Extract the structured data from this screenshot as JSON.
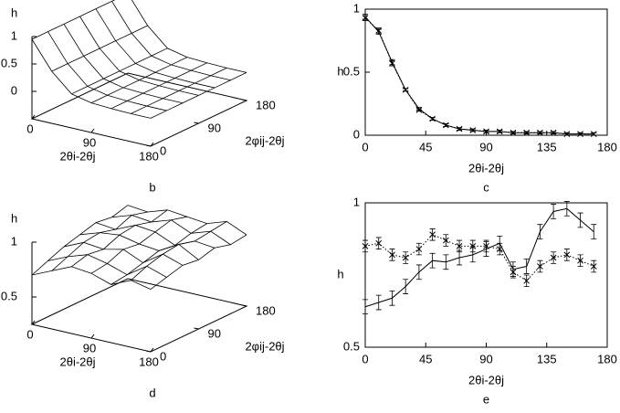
{
  "chart_data": [
    {
      "type": "surface3d",
      "panel": "b",
      "zlabel": "h",
      "xlabel": "2θi-2θj",
      "ylabel": "2φij-2θj",
      "xlim": [
        0,
        180
      ],
      "ylim": [
        0,
        180
      ],
      "zlim": [
        0,
        1
      ],
      "xticks": [
        0,
        90,
        180
      ],
      "yticks": [
        0,
        90,
        180
      ],
      "zticks": [
        0,
        0.5,
        1
      ],
      "x": [
        0,
        30,
        60,
        90,
        120,
        150,
        180
      ],
      "y": [
        0,
        30,
        60,
        90,
        120,
        150,
        180
      ],
      "z": [
        [
          0.95,
          0.45,
          0.12,
          0.04,
          0.02,
          0.01,
          0.01
        ],
        [
          0.95,
          0.45,
          0.12,
          0.04,
          0.02,
          0.01,
          0.01
        ],
        [
          0.95,
          0.45,
          0.12,
          0.04,
          0.02,
          0.01,
          0.01
        ],
        [
          0.95,
          0.45,
          0.12,
          0.04,
          0.02,
          0.01,
          0.01
        ],
        [
          0.95,
          0.45,
          0.12,
          0.04,
          0.02,
          0.01,
          0.01
        ],
        [
          0.95,
          0.45,
          0.12,
          0.04,
          0.02,
          0.01,
          0.01
        ],
        [
          0.95,
          0.45,
          0.12,
          0.04,
          0.02,
          0.01,
          0.01
        ]
      ]
    },
    {
      "type": "line",
      "panel": "c",
      "ylabel": "h",
      "xlabel": "2θi-2θj",
      "xlim": [
        0,
        180
      ],
      "ylim": [
        0,
        1
      ],
      "xticks": [
        0,
        45,
        90,
        135,
        180
      ],
      "yticks": [
        0,
        0.5,
        1
      ],
      "x": [
        0,
        10,
        20,
        30,
        40,
        50,
        60,
        70,
        80,
        90,
        100,
        110,
        120,
        130,
        140,
        150,
        160,
        170
      ],
      "series": [
        {
          "color": "#000000",
          "line_style": "solid",
          "marker": "none",
          "values": [
            0.94,
            0.82,
            0.58,
            0.36,
            0.21,
            0.13,
            0.08,
            0.05,
            0.04,
            0.03,
            0.03,
            0.02,
            0.02,
            0.02,
            0.02,
            0.01,
            0.01,
            0.01
          ],
          "errors": [
            0.02,
            0.02,
            0.02,
            0.01,
            0.01,
            0.01,
            0.01,
            0.01,
            0.01,
            0.01,
            0.01,
            0.01,
            0.01,
            0.01,
            0.01,
            0.01,
            0.01,
            0.01
          ]
        },
        {
          "color": "#000000",
          "line_style": "dotted",
          "marker": "x",
          "values": [
            0.93,
            0.83,
            0.57,
            0.36,
            0.2,
            0.13,
            0.08,
            0.05,
            0.04,
            0.03,
            0.03,
            0.02,
            0.02,
            0.02,
            0.02,
            0.01,
            0.01,
            0.01
          ],
          "errors": [
            0.02,
            0.02,
            0.02,
            0.01,
            0.01,
            0.01,
            0.01,
            0.01,
            0.01,
            0.01,
            0.01,
            0.01,
            0.01,
            0.01,
            0.01,
            0.01,
            0.01,
            0.01
          ]
        }
      ]
    },
    {
      "type": "surface3d",
      "panel": "d",
      "zlabel": "h",
      "xlabel": "2θi-2θj",
      "ylabel": "2φij-2θj",
      "xlim": [
        0,
        180
      ],
      "ylim": [
        0,
        180
      ],
      "zlim": [
        0.5,
        1
      ],
      "xticks": [
        0,
        90,
        180
      ],
      "yticks": [
        0,
        90,
        180
      ],
      "zticks": [
        0.5,
        1
      ],
      "x": [
        0,
        30,
        60,
        90,
        120,
        150,
        180
      ],
      "y": [
        0,
        30,
        60,
        90,
        120,
        150,
        180
      ],
      "z": [
        [
          0.7,
          0.78,
          0.86,
          0.84,
          0.78,
          0.86,
          0.82
        ],
        [
          0.76,
          0.84,
          0.9,
          0.86,
          0.8,
          0.92,
          0.86
        ],
        [
          0.82,
          0.9,
          0.88,
          0.92,
          0.84,
          0.96,
          0.9
        ],
        [
          0.86,
          0.92,
          0.94,
          0.9,
          0.88,
          0.98,
          0.88
        ],
        [
          0.9,
          0.88,
          0.96,
          0.94,
          0.86,
          0.94,
          0.92
        ],
        [
          0.88,
          0.94,
          0.92,
          0.98,
          0.9,
          0.96,
          0.88
        ],
        [
          0.92,
          0.9,
          0.96,
          0.94,
          0.92,
          0.98,
          0.9
        ]
      ]
    },
    {
      "type": "line",
      "panel": "e",
      "ylabel": "h",
      "xlabel": "2θi-2θj",
      "xlim": [
        0,
        180
      ],
      "ylim": [
        0.5,
        1
      ],
      "xticks": [
        0,
        45,
        90,
        135,
        180
      ],
      "yticks": [
        0.5,
        1
      ],
      "x": [
        0,
        10,
        20,
        30,
        40,
        50,
        60,
        70,
        80,
        90,
        100,
        110,
        120,
        130,
        140,
        150,
        160,
        170
      ],
      "series": [
        {
          "color": "#000000",
          "line_style": "solid",
          "marker": "none",
          "values": [
            0.64,
            0.655,
            0.67,
            0.71,
            0.76,
            0.8,
            0.795,
            0.81,
            0.82,
            0.84,
            0.86,
            0.77,
            0.78,
            0.9,
            0.97,
            0.98,
            0.94,
            0.9
          ],
          "errors": [
            0.025,
            0.025,
            0.025,
            0.025,
            0.025,
            0.025,
            0.025,
            0.025,
            0.025,
            0.025,
            0.025,
            0.025,
            0.025,
            0.025,
            0.025,
            0.025,
            0.025,
            0.025
          ]
        },
        {
          "color": "#000000",
          "line_style": "dotted",
          "marker": "x",
          "values": [
            0.85,
            0.86,
            0.82,
            0.81,
            0.84,
            0.89,
            0.87,
            0.85,
            0.85,
            0.85,
            0.84,
            0.76,
            0.73,
            0.78,
            0.81,
            0.82,
            0.8,
            0.78
          ],
          "errors": [
            0.02,
            0.02,
            0.02,
            0.02,
            0.02,
            0.02,
            0.02,
            0.02,
            0.02,
            0.02,
            0.02,
            0.02,
            0.02,
            0.02,
            0.02,
            0.02,
            0.02,
            0.02
          ]
        }
      ]
    }
  ]
}
